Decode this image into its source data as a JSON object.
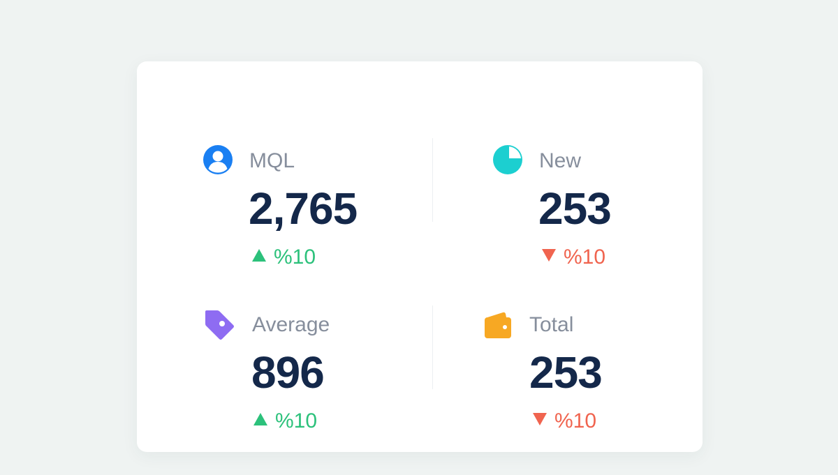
{
  "colors": {
    "up": "#2cc17b",
    "down": "#f0644f",
    "value": "#14284a",
    "label": "#868e9c"
  },
  "stats": [
    {
      "label": "MQL",
      "value": "2,765",
      "change": "%10",
      "trend": "up",
      "icon": "user-circle-icon",
      "icon_color": "#1a7ff2"
    },
    {
      "label": "New",
      "value": "253",
      "change": "%10",
      "trend": "down",
      "icon": "pie-chart-icon",
      "icon_color": "#1ccfd0"
    },
    {
      "label": "Average",
      "value": "896",
      "change": "%10",
      "trend": "up",
      "icon": "price-tag-icon",
      "icon_color": "#8e6cf2"
    },
    {
      "label": "Total",
      "value": "253",
      "change": "%10",
      "trend": "down",
      "icon": "wallet-icon",
      "icon_color": "#f7a823"
    }
  ]
}
